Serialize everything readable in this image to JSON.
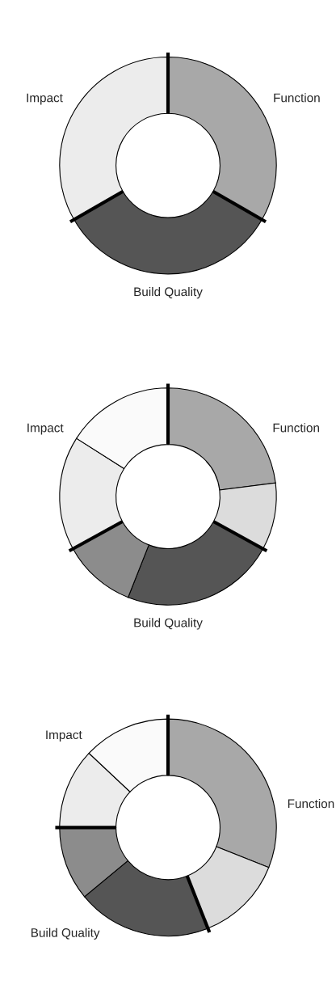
{
  "chart_data": [
    {
      "type": "donut",
      "categories": [
        "Function",
        "Build Quality",
        "Impact"
      ],
      "values": [
        33.3,
        33.4,
        33.3
      ],
      "colors": [
        "#a8a8a8",
        "#555555",
        "#ececec"
      ]
    },
    {
      "type": "donut",
      "categories": [
        "Function",
        null,
        "Build Quality",
        null,
        "Impact",
        null
      ],
      "values": [
        23,
        10,
        23,
        11,
        17,
        16
      ],
      "colors": [
        "#a8a8a8",
        "#dcdcdc",
        "#555555",
        "#8c8c8c",
        "#ececec",
        "#fafafa"
      ]
    },
    {
      "type": "donut",
      "categories": [
        "Function",
        null,
        "Build Quality",
        null,
        "Impact",
        null
      ],
      "values": [
        31,
        13,
        20,
        11,
        12,
        13
      ],
      "colors": [
        "#a8a8a8",
        "#dcdcdc",
        "#555555",
        "#8c8c8c",
        "#ececec",
        "#fafafa"
      ]
    }
  ]
}
